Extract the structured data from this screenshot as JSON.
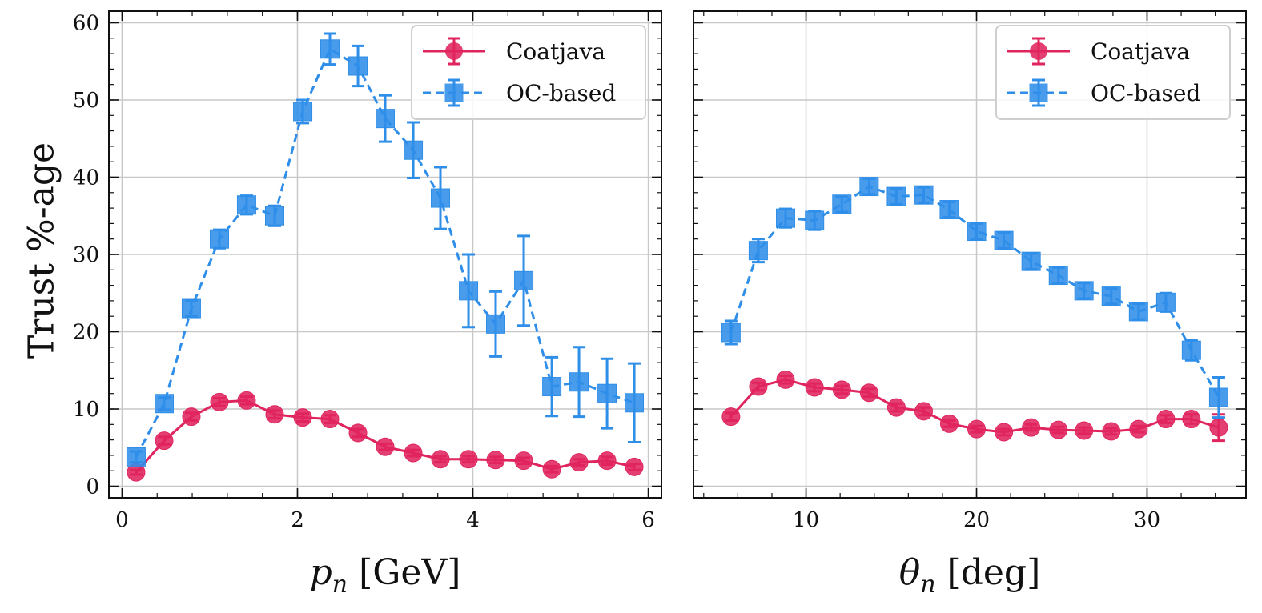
{
  "figure": {
    "ylabel": "Trust %-age"
  },
  "chart_data": [
    {
      "type": "line",
      "xlabel_var": "p",
      "xlabel_sub": "n",
      "xlabel_unit": "[GeV]",
      "xlim": [
        -0.15,
        6.15
      ],
      "ylim": [
        -1.5,
        61.5
      ],
      "xticks": [
        0,
        2,
        4,
        6
      ],
      "yticks": [
        0,
        10,
        20,
        30,
        40,
        50,
        60
      ],
      "grid": true,
      "legend_position": "top-right",
      "series": [
        {
          "name": "Coatjava",
          "color": "#e0245e",
          "marker": "circle",
          "linestyle": "solid",
          "x": [
            0.16,
            0.48,
            0.79,
            1.11,
            1.42,
            1.74,
            2.06,
            2.37,
            2.69,
            3.0,
            3.32,
            3.63,
            3.95,
            4.26,
            4.58,
            4.9,
            5.21,
            5.53,
            5.84
          ],
          "y": [
            1.8,
            5.9,
            9.0,
            10.9,
            11.1,
            9.3,
            8.9,
            8.7,
            6.9,
            5.1,
            4.3,
            3.5,
            3.5,
            3.4,
            3.3,
            2.2,
            3.1,
            3.3,
            2.5
          ],
          "err": [
            0.3,
            0.5,
            0.5,
            0.5,
            0.5,
            0.5,
            0.5,
            0.5,
            0.5,
            0.4,
            0.4,
            0.4,
            0.4,
            0.4,
            0.4,
            0.4,
            0.4,
            0.5,
            0.4
          ]
        },
        {
          "name": "OC-based",
          "color": "#2f8ee8",
          "marker": "square",
          "linestyle": "dashed",
          "x": [
            0.16,
            0.48,
            0.79,
            1.11,
            1.42,
            1.74,
            2.06,
            2.37,
            2.69,
            3.0,
            3.32,
            3.63,
            3.95,
            4.26,
            4.58,
            4.9,
            5.21,
            5.53,
            5.84
          ],
          "y": [
            3.8,
            10.7,
            23.0,
            32.0,
            36.4,
            35.0,
            48.5,
            56.6,
            54.4,
            47.6,
            43.5,
            37.3,
            25.3,
            21.0,
            26.6,
            12.9,
            13.5,
            12.0,
            10.8
          ],
          "err": [
            0.7,
            0.8,
            1.0,
            1.2,
            1.2,
            1.3,
            1.5,
            2.0,
            2.6,
            3.0,
            3.6,
            4.0,
            4.7,
            4.2,
            5.8,
            3.8,
            4.5,
            4.5,
            5.1
          ]
        }
      ]
    },
    {
      "type": "line",
      "xlabel_var": "θ",
      "xlabel_sub": "n",
      "xlabel_unit": "[deg]",
      "xlim": [
        3.4,
        35.8
      ],
      "ylim": [
        -1.5,
        61.5
      ],
      "xticks": [
        10,
        20,
        30
      ],
      "yticks": [
        0,
        10,
        20,
        30,
        40,
        50,
        60
      ],
      "grid": true,
      "legend_position": "top-right",
      "series": [
        {
          "name": "Coatjava",
          "color": "#e0245e",
          "marker": "circle",
          "linestyle": "solid",
          "x": [
            5.6,
            7.2,
            8.8,
            10.5,
            12.1,
            13.7,
            15.3,
            16.9,
            18.4,
            20.0,
            21.6,
            23.2,
            24.8,
            26.3,
            27.9,
            29.5,
            31.1,
            32.6,
            34.2
          ],
          "y": [
            9.0,
            12.9,
            13.8,
            12.8,
            12.5,
            12.1,
            10.2,
            9.7,
            8.1,
            7.4,
            7.0,
            7.6,
            7.3,
            7.2,
            7.1,
            7.4,
            8.7,
            8.7,
            7.6
          ],
          "err": [
            0.5,
            0.5,
            0.5,
            0.5,
            0.5,
            0.5,
            0.5,
            0.5,
            0.4,
            0.4,
            0.4,
            0.4,
            0.4,
            0.4,
            0.4,
            0.4,
            0.5,
            0.6,
            1.7
          ]
        },
        {
          "name": "OC-based",
          "color": "#2f8ee8",
          "marker": "square",
          "linestyle": "dashed",
          "x": [
            5.6,
            7.2,
            8.8,
            10.5,
            12.1,
            13.7,
            15.3,
            16.9,
            18.4,
            20.0,
            21.6,
            23.2,
            24.8,
            26.3,
            27.9,
            29.5,
            31.1,
            32.6,
            34.2
          ],
          "y": [
            19.9,
            30.5,
            34.7,
            34.4,
            36.5,
            38.8,
            37.5,
            37.7,
            35.8,
            33.0,
            31.8,
            29.1,
            27.3,
            25.3,
            24.6,
            22.6,
            23.8,
            17.6,
            11.5
          ],
          "err": [
            1.5,
            1.5,
            1.2,
            1.2,
            1.0,
            1.0,
            1.0,
            1.0,
            1.0,
            1.0,
            1.0,
            1.0,
            1.0,
            1.0,
            1.0,
            1.0,
            1.2,
            1.3,
            2.6
          ]
        }
      ]
    }
  ]
}
